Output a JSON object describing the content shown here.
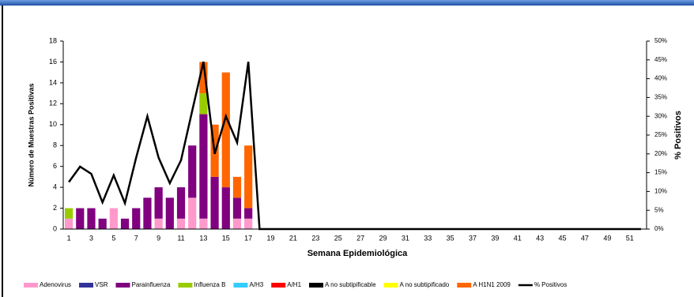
{
  "chart_data": {
    "type": "stacked-bar-line",
    "x_label": "Semana Epidemiológica",
    "y_label": "Número de Muestras Positivas",
    "y2_label": "% Positivos",
    "categories": [
      "1",
      null,
      "3",
      null,
      "5",
      null,
      "7",
      null,
      "9",
      null,
      "11",
      null,
      "13",
      null,
      "15",
      null,
      "17",
      null,
      "19",
      null,
      "21",
      null,
      "23",
      null,
      "25",
      null,
      "27",
      null,
      "29",
      null,
      "31",
      null,
      "33",
      null,
      "35",
      null,
      "37",
      null,
      "39",
      null,
      "41",
      null,
      "43",
      null,
      "45",
      null,
      "47",
      null,
      "49",
      null,
      "51",
      null
    ],
    "ylim": [
      0,
      18
    ],
    "yticks": [
      0,
      2,
      4,
      6,
      8,
      10,
      12,
      14,
      16,
      18
    ],
    "y2lim": [
      0,
      50
    ],
    "y2ticks": [
      {
        "value": 0,
        "label": "0%"
      },
      {
        "value": 5,
        "label": "5%"
      },
      {
        "value": 10,
        "label": "10%"
      },
      {
        "value": 15,
        "label": "15%"
      },
      {
        "value": 20,
        "label": "20%"
      },
      {
        "value": 25,
        "label": "25%"
      },
      {
        "value": 30,
        "label": "30%"
      },
      {
        "value": 35,
        "label": "35%"
      },
      {
        "value": 40,
        "label": "40%"
      },
      {
        "value": 45,
        "label": "45%"
      },
      {
        "value": 50,
        "label": "50%"
      }
    ],
    "series": [
      {
        "name": "Adenovirus",
        "color": "#ff99cc",
        "values": [
          1,
          0,
          0,
          0,
          2,
          0,
          0,
          0,
          1,
          0,
          1,
          3,
          1,
          0,
          0,
          1,
          1,
          0,
          0,
          0,
          0,
          0,
          0,
          0,
          0,
          0,
          0,
          0,
          0,
          0,
          0,
          0,
          0,
          0,
          0,
          0,
          0,
          0,
          0,
          0,
          0,
          0,
          0,
          0,
          0,
          0,
          0,
          0,
          0,
          0,
          0,
          0
        ]
      },
      {
        "name": "VSR",
        "color": "#333399",
        "values": [
          0,
          0,
          0,
          0,
          0,
          0,
          0,
          0,
          0,
          0,
          0,
          0,
          0,
          0,
          0,
          0,
          0,
          0,
          0,
          0,
          0,
          0,
          0,
          0,
          0,
          0,
          0,
          0,
          0,
          0,
          0,
          0,
          0,
          0,
          0,
          0,
          0,
          0,
          0,
          0,
          0,
          0,
          0,
          0,
          0,
          0,
          0,
          0,
          0,
          0,
          0,
          0
        ]
      },
      {
        "name": "Parainfluenza",
        "color": "#800080",
        "values": [
          0,
          2,
          2,
          1,
          0,
          1,
          2,
          3,
          3,
          3,
          3,
          5,
          10,
          5,
          4,
          2,
          1,
          0,
          0,
          0,
          0,
          0,
          0,
          0,
          0,
          0,
          0,
          0,
          0,
          0,
          0,
          0,
          0,
          0,
          0,
          0,
          0,
          0,
          0,
          0,
          0,
          0,
          0,
          0,
          0,
          0,
          0,
          0,
          0,
          0,
          0,
          0
        ]
      },
      {
        "name": "Influenza  B",
        "color": "#99cc00",
        "values": [
          1,
          0,
          0,
          0,
          0,
          0,
          0,
          0,
          0,
          0,
          0,
          0,
          2,
          0,
          0,
          0,
          0,
          0,
          0,
          0,
          0,
          0,
          0,
          0,
          0,
          0,
          0,
          0,
          0,
          0,
          0,
          0,
          0,
          0,
          0,
          0,
          0,
          0,
          0,
          0,
          0,
          0,
          0,
          0,
          0,
          0,
          0,
          0,
          0,
          0,
          0,
          0
        ]
      },
      {
        "name": "A/H3",
        "color": "#33ccff",
        "values": [
          0,
          0,
          0,
          0,
          0,
          0,
          0,
          0,
          0,
          0,
          0,
          0,
          0,
          0,
          0,
          0,
          0,
          0,
          0,
          0,
          0,
          0,
          0,
          0,
          0,
          0,
          0,
          0,
          0,
          0,
          0,
          0,
          0,
          0,
          0,
          0,
          0,
          0,
          0,
          0,
          0,
          0,
          0,
          0,
          0,
          0,
          0,
          0,
          0,
          0,
          0,
          0
        ]
      },
      {
        "name": "A/H1",
        "color": "#ff0000",
        "values": [
          0,
          0,
          0,
          0,
          0,
          0,
          0,
          0,
          0,
          0,
          0,
          0,
          0,
          0,
          0,
          0,
          0,
          0,
          0,
          0,
          0,
          0,
          0,
          0,
          0,
          0,
          0,
          0,
          0,
          0,
          0,
          0,
          0,
          0,
          0,
          0,
          0,
          0,
          0,
          0,
          0,
          0,
          0,
          0,
          0,
          0,
          0,
          0,
          0,
          0,
          0,
          0
        ]
      },
      {
        "name": "A no subtipificable",
        "color": "#000000",
        "values": [
          0,
          0,
          0,
          0,
          0,
          0,
          0,
          0,
          0,
          0,
          0,
          0,
          0,
          0,
          0,
          0,
          0,
          0,
          0,
          0,
          0,
          0,
          0,
          0,
          0,
          0,
          0,
          0,
          0,
          0,
          0,
          0,
          0,
          0,
          0,
          0,
          0,
          0,
          0,
          0,
          0,
          0,
          0,
          0,
          0,
          0,
          0,
          0,
          0,
          0,
          0,
          0
        ]
      },
      {
        "name": "A no subtipificado",
        "color": "#ffff00",
        "values": [
          0,
          0,
          0,
          0,
          0,
          0,
          0,
          0,
          0,
          0,
          0,
          0,
          0,
          0,
          0,
          0,
          0,
          0,
          0,
          0,
          0,
          0,
          0,
          0,
          0,
          0,
          0,
          0,
          0,
          0,
          0,
          0,
          0,
          0,
          0,
          0,
          0,
          0,
          0,
          0,
          0,
          0,
          0,
          0,
          0,
          0,
          0,
          0,
          0,
          0,
          0,
          0
        ]
      },
      {
        "name": "A H1N1 2009",
        "color": "#ff6600",
        "values": [
          0,
          0,
          0,
          0,
          0,
          0,
          0,
          0,
          0,
          0,
          0,
          0,
          3,
          5,
          11,
          2,
          6,
          0,
          0,
          0,
          0,
          0,
          0,
          0,
          0,
          0,
          0,
          0,
          0,
          0,
          0,
          0,
          0,
          0,
          0,
          0,
          0,
          0,
          0,
          0,
          0,
          0,
          0,
          0,
          0,
          0,
          0,
          0,
          0,
          0,
          0,
          0
        ]
      },
      {
        "name": "% Positivos",
        "type": "line",
        "axis": "y2",
        "color": "#000000",
        "values": [
          12.5,
          16.6,
          14.7,
          7.1,
          14.3,
          6.9,
          19,
          30,
          19,
          12.2,
          18.3,
          31.5,
          44.5,
          20,
          30,
          23,
          44.5,
          0,
          0,
          0,
          0,
          0,
          0,
          0,
          0,
          0,
          0,
          0,
          0,
          0,
          0,
          0,
          0,
          0,
          0,
          0,
          0,
          0,
          0,
          0,
          0,
          0,
          0,
          0,
          0,
          0,
          0,
          0,
          0,
          0,
          0,
          0
        ]
      }
    ]
  }
}
